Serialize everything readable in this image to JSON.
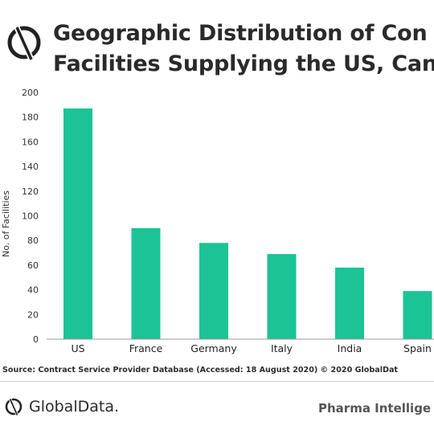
{
  "header": {
    "logo_icon": "globaldata-logo-icon",
    "title_line1": "Geographic Distribution of Con",
    "title_line2": "Facilities Supplying the US, Can"
  },
  "chart_data": {
    "type": "bar",
    "title": "Geographic Distribution of Con Facilities Supplying the US, Can",
    "xlabel": "",
    "ylabel": "No. of Facilities",
    "ylim": [
      0,
      200
    ],
    "yticks": [
      0,
      20,
      40,
      60,
      80,
      100,
      120,
      140,
      160,
      180,
      200
    ],
    "grid": false,
    "legend": "none",
    "bar_color": "#1cc395",
    "categories": [
      "US",
      "France",
      "Germany",
      "Italy",
      "India",
      "Spain"
    ],
    "values": [
      187,
      90,
      78,
      69,
      58,
      39
    ]
  },
  "source": {
    "text": "Source: Contract Service Provider Database (Accessed: 18 August 2020) © 2020 GlobalDat"
  },
  "footer": {
    "logo_text": "GlobalData.",
    "right_text": "Pharma Intellige"
  }
}
